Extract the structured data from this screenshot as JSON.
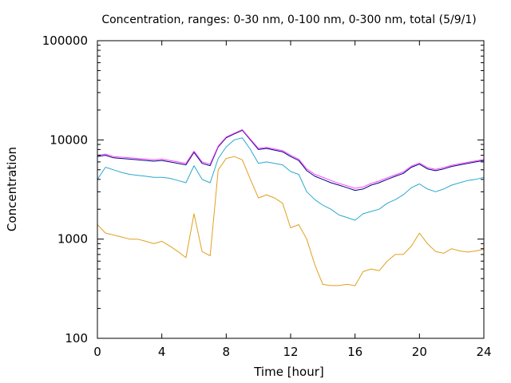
{
  "chart_data": {
    "type": "line",
    "title": "Concentration, ranges: 0-30 nm, 0-100 nm, 0-300 nm, total (5/9/1)",
    "xlabel": "Time [hour]",
    "ylabel": "Concentration",
    "xlim": [
      0,
      24
    ],
    "ylim": [
      100,
      100000
    ],
    "yscale": "log",
    "grid": false,
    "legend": "none",
    "xticks": [
      0,
      4,
      8,
      12,
      16,
      20,
      24
    ],
    "xtick_labels": [
      "0",
      "4",
      "8",
      "12",
      "16",
      "20",
      "24"
    ],
    "yticks": [
      100,
      1000,
      10000,
      100000
    ],
    "ytick_labels": [
      "100",
      "1000",
      "10000",
      "100000"
    ],
    "x": [
      0,
      0.5,
      1,
      1.5,
      2,
      2.5,
      3,
      3.5,
      4,
      4.5,
      5,
      5.5,
      6,
      6.5,
      7,
      7.5,
      8,
      8.5,
      9,
      9.5,
      10,
      10.5,
      11,
      11.5,
      12,
      12.5,
      13,
      13.5,
      14,
      14.5,
      15,
      15.5,
      16,
      16.5,
      17,
      17.5,
      18,
      18.5,
      19,
      19.5,
      20,
      20.5,
      21,
      21.5,
      22,
      22.5,
      23,
      23.5,
      24
    ],
    "series": [
      {
        "color": "#e0a020",
        "values": [
          1400,
          1150,
          1100,
          1050,
          1000,
          1000,
          950,
          900,
          950,
          850,
          750,
          650,
          1800,
          750,
          680,
          5000,
          6500,
          6800,
          6300,
          4000,
          2600,
          2800,
          2600,
          2300,
          1300,
          1400,
          1000,
          550,
          350,
          340,
          340,
          350,
          340,
          470,
          500,
          480,
          600,
          700,
          700,
          850,
          1150,
          900,
          750,
          720,
          800,
          760,
          740,
          760,
          790
        ]
      },
      {
        "color": "#2aa8d0",
        "values": [
          4000,
          5300,
          5000,
          4700,
          4500,
          4400,
          4300,
          4200,
          4200,
          4100,
          3900,
          3700,
          5500,
          4000,
          3700,
          6500,
          8500,
          10000,
          10500,
          8000,
          5800,
          6000,
          5800,
          5600,
          4800,
          4500,
          3000,
          2500,
          2200,
          2000,
          1750,
          1650,
          1550,
          1800,
          1900,
          2000,
          2300,
          2500,
          2800,
          3300,
          3600,
          3200,
          3000,
          3200,
          3500,
          3700,
          3900,
          4000,
          4200
        ]
      },
      {
        "color": "#000080",
        "values": [
          6800,
          7000,
          6600,
          6500,
          6400,
          6300,
          6200,
          6100,
          6200,
          6000,
          5800,
          5600,
          7500,
          5800,
          5500,
          8500,
          10500,
          11500,
          12500,
          10000,
          8000,
          8200,
          7900,
          7600,
          6800,
          6200,
          4900,
          4300,
          4000,
          3700,
          3500,
          3300,
          3100,
          3200,
          3500,
          3700,
          4000,
          4300,
          4600,
          5300,
          5700,
          5100,
          4900,
          5100,
          5400,
          5600,
          5800,
          6000,
          6200
        ]
      },
      {
        "color": "#ff40ff",
        "values": [
          7000,
          7200,
          6800,
          6700,
          6600,
          6500,
          6400,
          6300,
          6400,
          6200,
          6000,
          5800,
          7700,
          6000,
          5700,
          8700,
          10700,
          11700,
          12700,
          10200,
          8200,
          8400,
          8100,
          7800,
          7000,
          6400,
          5100,
          4500,
          4200,
          3900,
          3650,
          3450,
          3250,
          3350,
          3650,
          3850,
          4150,
          4450,
          4750,
          5450,
          5850,
          5250,
          5050,
          5250,
          5550,
          5750,
          5950,
          6150,
          6350
        ]
      }
    ]
  }
}
